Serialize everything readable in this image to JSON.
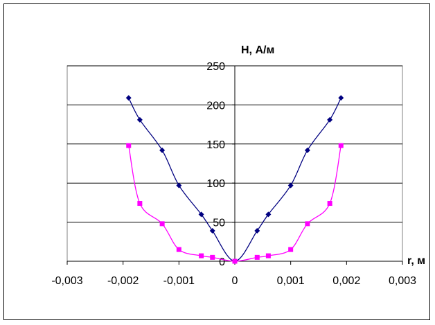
{
  "chart_data": {
    "type": "line",
    "title": "",
    "xlabel": "r, м",
    "ylabel": "H, А/м",
    "xlim": [
      -0.003,
      0.003
    ],
    "ylim": [
      0,
      250
    ],
    "x_ticks": [
      "-0,003",
      "-0,002",
      "-0,001",
      "0",
      "0,001",
      "0,002",
      "0,003"
    ],
    "y_ticks": [
      "0",
      "50",
      "100",
      "150",
      "200",
      "250"
    ],
    "grid": "horizontal",
    "legend": "none",
    "series": [
      {
        "color": "#000080",
        "marker": "diamond",
        "points": [
          [
            -0.0019,
            209
          ],
          [
            -0.0017,
            181
          ],
          [
            -0.0013,
            142
          ],
          [
            -0.001,
            97
          ],
          [
            -0.0006,
            60
          ],
          [
            -0.0004,
            39
          ],
          [
            0,
            0
          ],
          [
            0.0004,
            39
          ],
          [
            0.0006,
            60
          ],
          [
            0.001,
            97
          ],
          [
            0.0013,
            142
          ],
          [
            0.0017,
            181
          ],
          [
            0.0019,
            209
          ]
        ]
      },
      {
        "color": "#FF00FF",
        "marker": "square",
        "points": [
          [
            -0.0019,
            148
          ],
          [
            -0.0017,
            74
          ],
          [
            -0.0013,
            48
          ],
          [
            -0.001,
            15
          ],
          [
            -0.0006,
            7
          ],
          [
            -0.0004,
            5
          ],
          [
            0,
            0
          ],
          [
            0.0004,
            5
          ],
          [
            0.0006,
            7
          ],
          [
            0.001,
            15
          ],
          [
            0.0013,
            48
          ],
          [
            0.0017,
            74
          ],
          [
            0.0019,
            148
          ]
        ]
      }
    ]
  }
}
